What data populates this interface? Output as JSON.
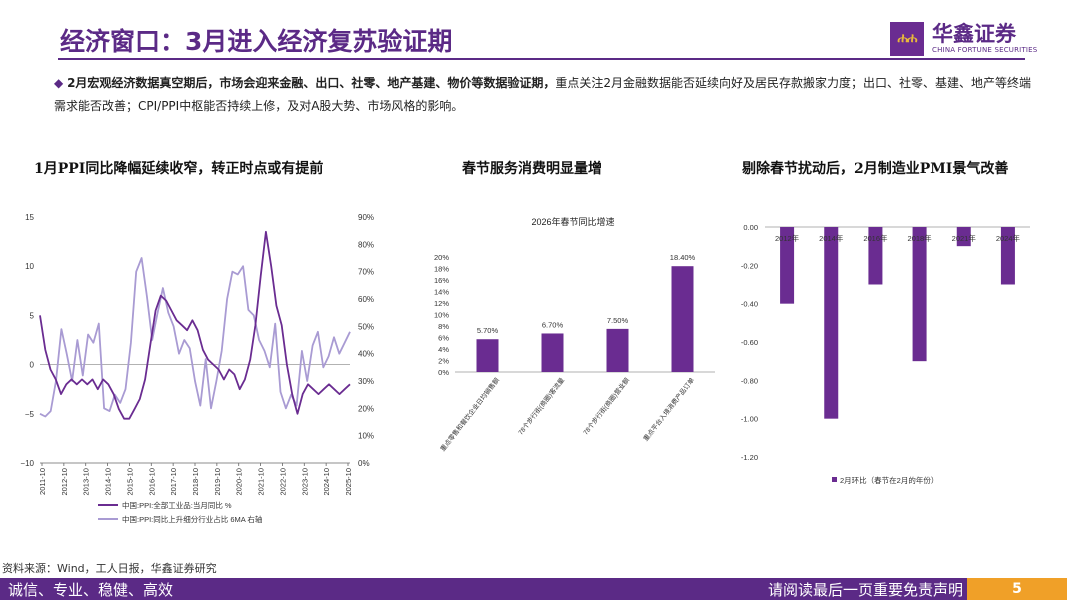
{
  "header": {
    "title": "经济窗口：3月进入经济复苏验证期",
    "logo_mark": "ሐ",
    "logo_cn": "华鑫证券",
    "logo_en": "CHINA FORTUNE SECURITIES"
  },
  "bullet": {
    "marker": "◆",
    "bold_text": "2月宏观经济数据真空期后，市场会迎来金融、出口、社零、地产基建、物价等数据验证期，",
    "text": "重点关注2月金融数据能否延续向好及居民存款搬家力度；出口、社零、基建、地产等终端需求能否改善；CPI/PPI中枢能否持续上修，及对A股大势、市场风格的影响。"
  },
  "chart_titles": {
    "left": "1月PPI同比降幅延续收窄，转正时点或有提前",
    "middle": "春节服务消费明显量增",
    "right": "剔除春节扰动后，2月制造业PMI景气改善"
  },
  "colors": {
    "brand": "#5b2a86",
    "series_dark": "#6a2c91",
    "series_light": "#a99bd3",
    "bar": "#6a2c91",
    "accent": "#f0a028"
  },
  "chart_data": [
    {
      "type": "line",
      "x_ticks": [
        "2011-10",
        "2012-10",
        "2013-10",
        "2014-10",
        "2015-10",
        "2016-10",
        "2017-10",
        "2018-10",
        "2019-10",
        "2020-10",
        "2021-10",
        "2022-10",
        "2023-10",
        "2024-10",
        "2025-10"
      ],
      "y_left": {
        "ticks": [
          "15",
          "10",
          "5",
          "0",
          "−5",
          "−10"
        ],
        "lim": [
          -10,
          15
        ]
      },
      "y_right": {
        "ticks": [
          "90%",
          "80%",
          "70%",
          "60%",
          "50%",
          "40%",
          "30%",
          "20%",
          "10%",
          "0%"
        ],
        "lim": [
          0,
          90
        ]
      },
      "series": [
        {
          "name": "中国:PPI:全部工业品:当月同比 %",
          "axis": "left",
          "values": [
            5.0,
            1.5,
            -0.5,
            -1.5,
            -3.0,
            -2.0,
            -1.5,
            -2.0,
            -1.5,
            -2.0,
            -1.5,
            -2.5,
            -1.5,
            -2.0,
            -3.0,
            -4.5,
            -5.5,
            -5.5,
            -4.5,
            -3.5,
            -1.5,
            2.0,
            5.5,
            7.0,
            6.5,
            5.5,
            4.5,
            4.0,
            3.5,
            4.5,
            3.5,
            1.5,
            0.5,
            0,
            -0.5,
            -1.5,
            -0.5,
            -1.0,
            -2.5,
            -1.5,
            0.5,
            4.0,
            9.0,
            13.5,
            10.0,
            6.0,
            4.0,
            0,
            -3.0,
            -5.0,
            -3.0,
            -2.0,
            -2.5,
            -3.0,
            -2.5,
            -2.0,
            -2.5,
            -3.0,
            -2.5,
            -2.0
          ]
        },
        {
          "name": "中国:PPI:同比上升细分行业占比 6MA 右轴",
          "axis": "right",
          "values": [
            18,
            17,
            19,
            30,
            49,
            40,
            30,
            45,
            32,
            47,
            44,
            51,
            20,
            19,
            25,
            22,
            27,
            44,
            70,
            75,
            61,
            45,
            55,
            64,
            55,
            50,
            40,
            45,
            42,
            30,
            21,
            38,
            20,
            30,
            41,
            60,
            70,
            69,
            72,
            56,
            54,
            45,
            41,
            35,
            51,
            26,
            20,
            25,
            21,
            41,
            30,
            43,
            48,
            35,
            39,
            46,
            40,
            44,
            48
          ]
        }
      ]
    },
    {
      "type": "bar",
      "title": "2026年春节同比增速",
      "categories": [
        "重点零售和餐饮企业日均销售额",
        "78个步行街(商圈)客流量",
        "78个步行街(商圈)营业额",
        "重点平台入境消费产品订单"
      ],
      "values": [
        5.7,
        6.7,
        7.5,
        18.4
      ],
      "data_labels": [
        "5.70%",
        "6.70%",
        "7.50%",
        "18.40%"
      ],
      "y_ticks": [
        "20%",
        "18%",
        "16%",
        "14%",
        "12%",
        "10%",
        "8%",
        "6%",
        "4%",
        "2%",
        "0%"
      ],
      "ylim": [
        0,
        20
      ]
    },
    {
      "type": "bar",
      "categories": [
        "2012年",
        "2014年",
        "2016年",
        "2018年",
        "2021年",
        "2024年"
      ],
      "values": [
        -0.4,
        -1.0,
        -0.3,
        -0.7,
        -0.1,
        -0.3
      ],
      "y_ticks": [
        "0.00",
        "-0.20",
        "-0.40",
        "-0.60",
        "-0.80",
        "-1.00",
        "-1.20"
      ],
      "ylim": [
        -1.2,
        0
      ],
      "legend": "2月环比（春节在2月的年份）",
      "legend_position": "bottom"
    }
  ],
  "source": "资料来源：Wind，工人日报，华鑫证券研究",
  "footer": {
    "left": "诚信、专业、稳健、高效",
    "right": "请阅读最后一页重要免责声明",
    "page": "5"
  }
}
